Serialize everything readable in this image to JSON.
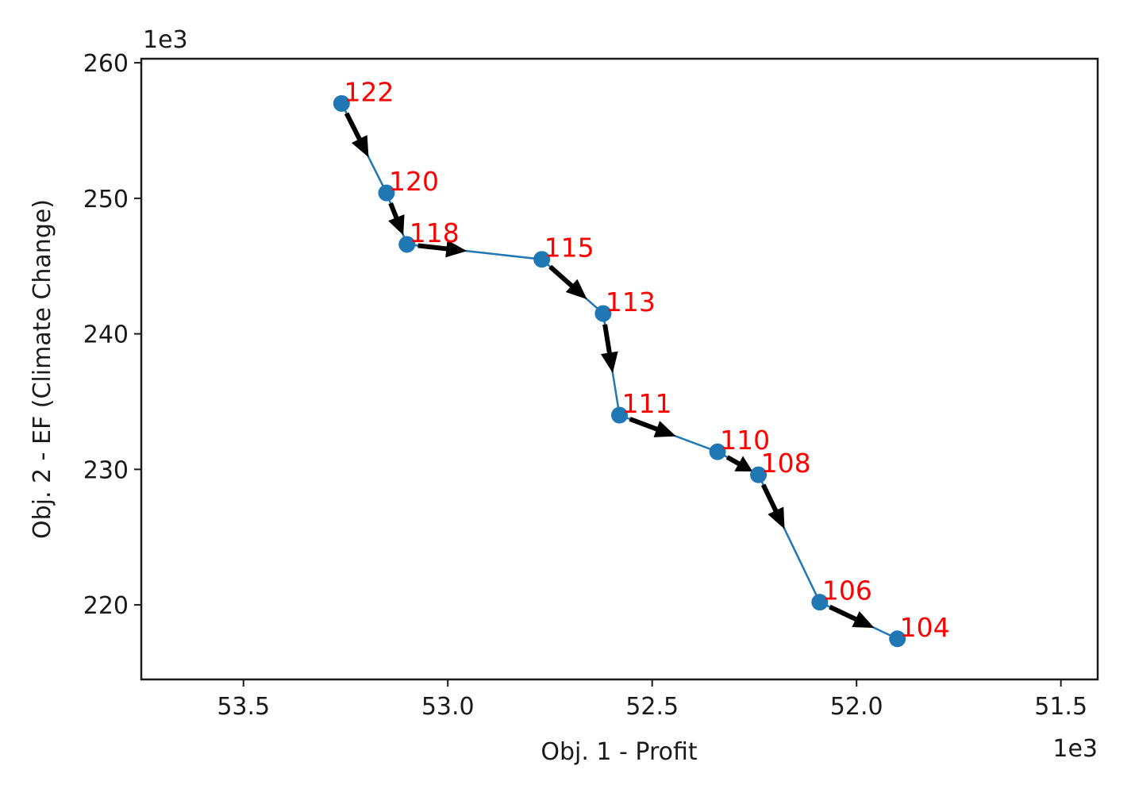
{
  "chart_data": {
    "type": "line",
    "title": "",
    "xlabel": "Obj. 1 - Profit",
    "ylabel": "Obj. 2 - EF (Climate Change)",
    "x_offset_label": "1e3",
    "y_offset_label": "1e3",
    "xlim": [
      53.75,
      51.41
    ],
    "ylim": [
      214.5,
      260.3
    ],
    "x_inverted": true,
    "grid": false,
    "xticks": [
      53.5,
      53.0,
      52.5,
      52.0,
      51.5
    ],
    "xtick_labels": [
      "53.5",
      "53.0",
      "52.5",
      "52.0",
      "51.5"
    ],
    "yticks": [
      220,
      230,
      240,
      250,
      260
    ],
    "ytick_labels": [
      "220",
      "230",
      "240",
      "250",
      "260"
    ],
    "series": [
      {
        "marker": "circle",
        "arrows": true,
        "points": [
          {
            "label": "122",
            "x": 53.26,
            "y": 257.0
          },
          {
            "label": "120",
            "x": 53.15,
            "y": 250.4
          },
          {
            "label": "118",
            "x": 53.1,
            "y": 246.6
          },
          {
            "label": "115",
            "x": 52.77,
            "y": 245.5
          },
          {
            "label": "113",
            "x": 52.62,
            "y": 241.5
          },
          {
            "label": "111",
            "x": 52.58,
            "y": 234.0
          },
          {
            "label": "110",
            "x": 52.34,
            "y": 231.3
          },
          {
            "label": "108",
            "x": 52.24,
            "y": 229.6
          },
          {
            "label": "106",
            "x": 52.09,
            "y": 220.2
          },
          {
            "label": "104",
            "x": 51.9,
            "y": 217.5
          }
        ]
      }
    ]
  },
  "colors": {
    "line": "#1f77b4",
    "marker": "#1f77b4",
    "point_label": "#ff0000",
    "arrow": "#000000",
    "axes": "#1a1a1a"
  }
}
